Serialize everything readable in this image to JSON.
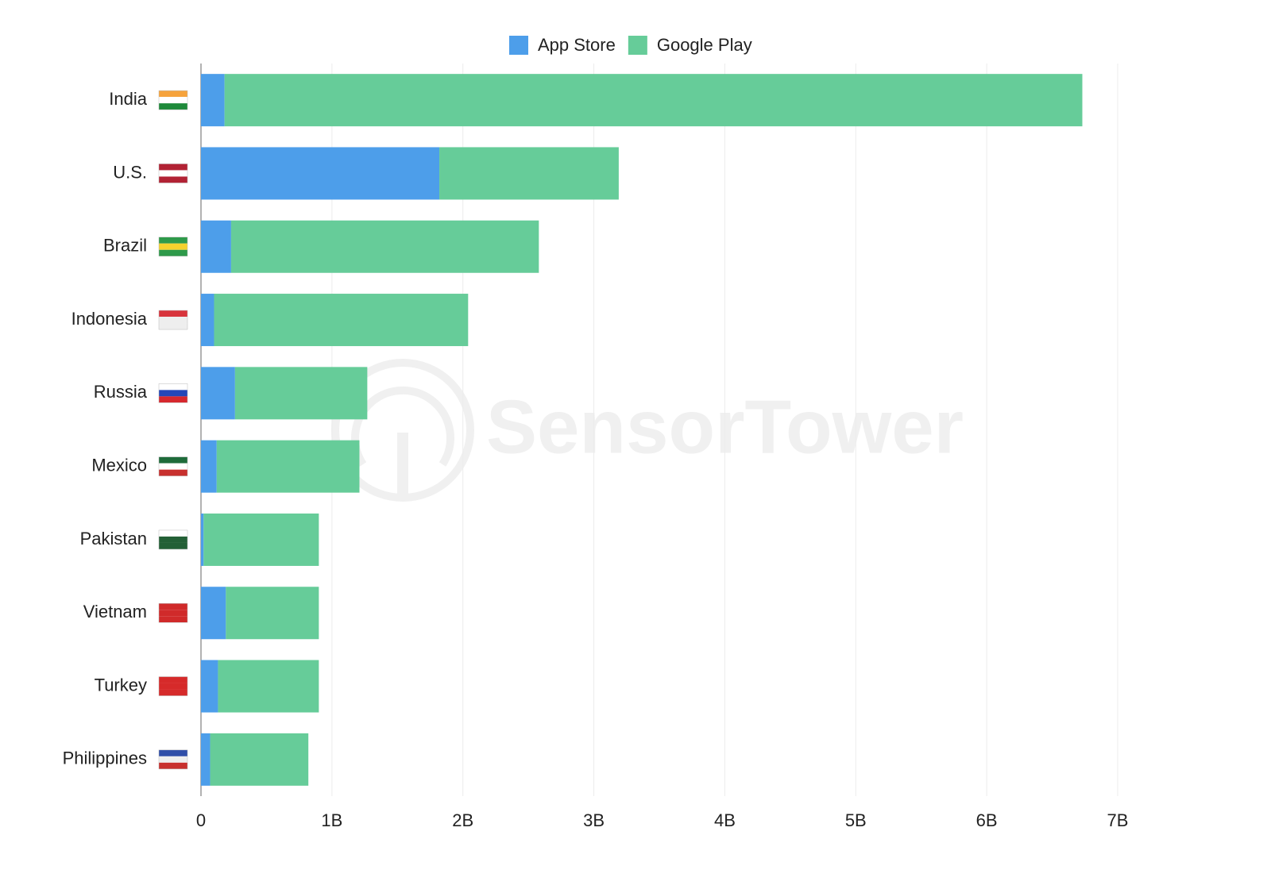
{
  "chart_data": {
    "type": "stacked_barh",
    "watermark": "SensorTower",
    "categories": [
      "India",
      "U.S.",
      "Brazil",
      "Indonesia",
      "Russia",
      "Mexico",
      "Pakistan",
      "Vietnam",
      "Turkey",
      "Philippines"
    ],
    "series": [
      {
        "name": "App Store",
        "color": "#4d9eea",
        "values": [
          0.18,
          1.82,
          0.23,
          0.1,
          0.26,
          0.12,
          0.02,
          0.19,
          0.13,
          0.07
        ]
      },
      {
        "name": "Google Play",
        "color": "#66cc99",
        "values": [
          6.55,
          1.37,
          2.35,
          1.94,
          1.01,
          1.09,
          0.88,
          0.71,
          0.77,
          0.75
        ]
      }
    ],
    "xlim": [
      0,
      7
    ],
    "xticks": [
      0,
      {
        "value": 1,
        "label": "1B"
      },
      {
        "value": 2,
        "label": "2B"
      },
      {
        "value": 3,
        "label": "3B"
      },
      {
        "value": 4,
        "label": "4B"
      },
      {
        "value": 5,
        "label": "5B"
      },
      {
        "value": 6,
        "label": "6B"
      },
      {
        "value": 7,
        "label": "7B"
      }
    ],
    "grid": true,
    "legend": "top"
  }
}
